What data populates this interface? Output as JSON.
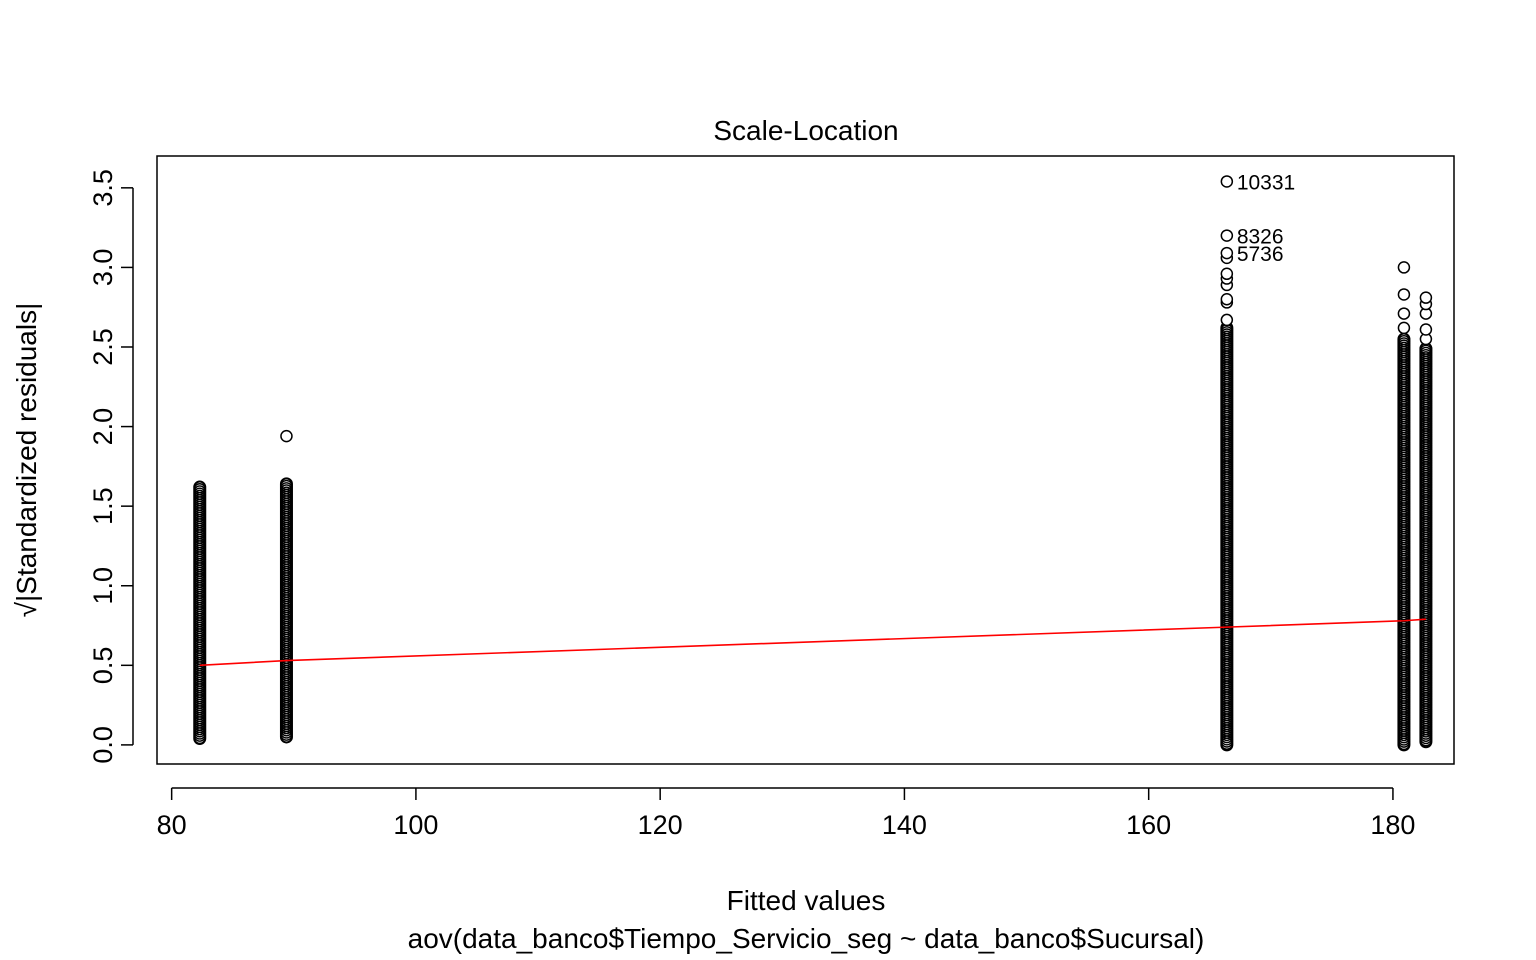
{
  "chart_data": {
    "type": "scatter",
    "title": "Scale-Location",
    "xlabel": "Fitted values",
    "ylabel": "√|Standardized residuals|",
    "subtitle": "aov(data_banco$Tiempo_Servicio_seg ~ data_banco$Sucursal)",
    "xlim": [
      78.8,
      185.0
    ],
    "ylim": [
      -0.12,
      3.7
    ],
    "xticks": [
      80,
      100,
      120,
      140,
      160,
      180
    ],
    "yticks": [
      0.0,
      0.5,
      1.0,
      1.5,
      2.0,
      2.5,
      3.0,
      3.5
    ],
    "xtick_labels": [
      "80",
      "100",
      "120",
      "140",
      "160",
      "180"
    ],
    "ytick_labels": [
      "0.0",
      "0.5",
      "1.0",
      "1.5",
      "2.0",
      "2.5",
      "3.0",
      "3.5"
    ],
    "grid": false,
    "groups": [
      {
        "fitted": 82.3,
        "dense_range": [
          0.04,
          1.62
        ],
        "outliers": []
      },
      {
        "fitted": 89.4,
        "dense_range": [
          0.05,
          1.64
        ],
        "outliers": [
          1.94
        ]
      },
      {
        "fitted": 166.4,
        "dense_range": [
          0.0,
          2.62
        ],
        "outliers": [
          2.67,
          2.78,
          2.8,
          2.89,
          2.93,
          2.96,
          3.06,
          3.09,
          3.2,
          3.54
        ]
      },
      {
        "fitted": 180.9,
        "dense_range": [
          0.0,
          2.55
        ],
        "outliers": [
          2.62,
          2.71,
          2.83,
          3.0
        ]
      },
      {
        "fitted": 182.7,
        "dense_range": [
          0.02,
          2.49
        ],
        "outliers": [
          2.55,
          2.61,
          2.71,
          2.77,
          2.81
        ]
      }
    ],
    "labeled_points": [
      {
        "label": "10331",
        "x": 166.4,
        "y": 3.54
      },
      {
        "label": "8326",
        "x": 166.4,
        "y": 3.2
      },
      {
        "label": "5736",
        "x": 166.4,
        "y": 3.09
      }
    ],
    "smoother": {
      "color": "#ff0000",
      "x": [
        82.3,
        89.4,
        166.4,
        180.9,
        182.7
      ],
      "y": [
        0.5,
        0.53,
        0.74,
        0.78,
        0.79
      ]
    }
  }
}
